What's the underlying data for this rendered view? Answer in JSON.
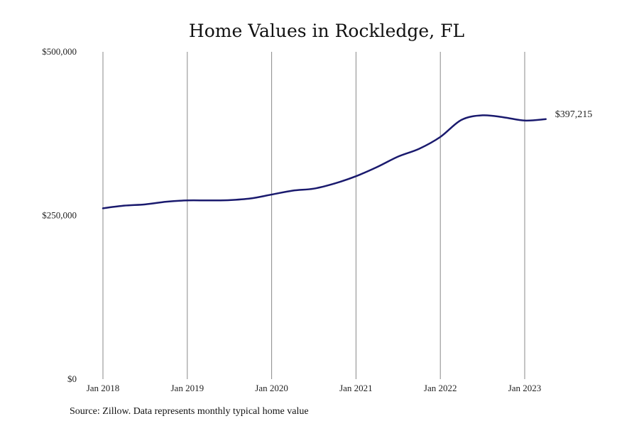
{
  "chart_data": {
    "type": "line",
    "title": "Home Values in Rockledge, FL",
    "xlabel": "",
    "ylabel": "",
    "ylim": [
      0,
      500000
    ],
    "y_ticks": [
      {
        "value": 0,
        "label": "$0"
      },
      {
        "value": 250000,
        "label": "$250,000"
      },
      {
        "value": 500000,
        "label": "$500,000"
      }
    ],
    "x_ticks": [
      {
        "value": "2018-01",
        "label": "Jan 2018"
      },
      {
        "value": "2019-01",
        "label": "Jan 2019"
      },
      {
        "value": "2020-01",
        "label": "Jan 2020"
      },
      {
        "value": "2021-01",
        "label": "Jan 2021"
      },
      {
        "value": "2022-01",
        "label": "Jan 2022"
      },
      {
        "value": "2023-01",
        "label": "Jan 2023"
      }
    ],
    "x_range": [
      "2018-01",
      "2023-04"
    ],
    "grid": {
      "vertical": true,
      "horizontal": false
    },
    "line_color": "#1a1a6e",
    "grid_color": "#888888",
    "end_label": "$397,215",
    "series": [
      {
        "x": [
          "2018-01",
          "2018-04",
          "2018-07",
          "2018-10",
          "2019-01",
          "2019-04",
          "2019-07",
          "2019-10",
          "2020-01",
          "2020-04",
          "2020-07",
          "2020-10",
          "2021-01",
          "2021-04",
          "2021-07",
          "2021-10",
          "2022-01",
          "2022-04",
          "2022-07",
          "2022-10",
          "2023-01",
          "2023-04"
        ],
        "values": [
          261000,
          265000,
          267000,
          271000,
          273000,
          273000,
          273500,
          276000,
          282000,
          288000,
          291000,
          299000,
          310000,
          324000,
          340000,
          352000,
          370000,
          396000,
          403000,
          400000,
          395000,
          397215
        ]
      }
    ]
  },
  "source_note": "Source: Zillow. Data represents monthly typical home value"
}
